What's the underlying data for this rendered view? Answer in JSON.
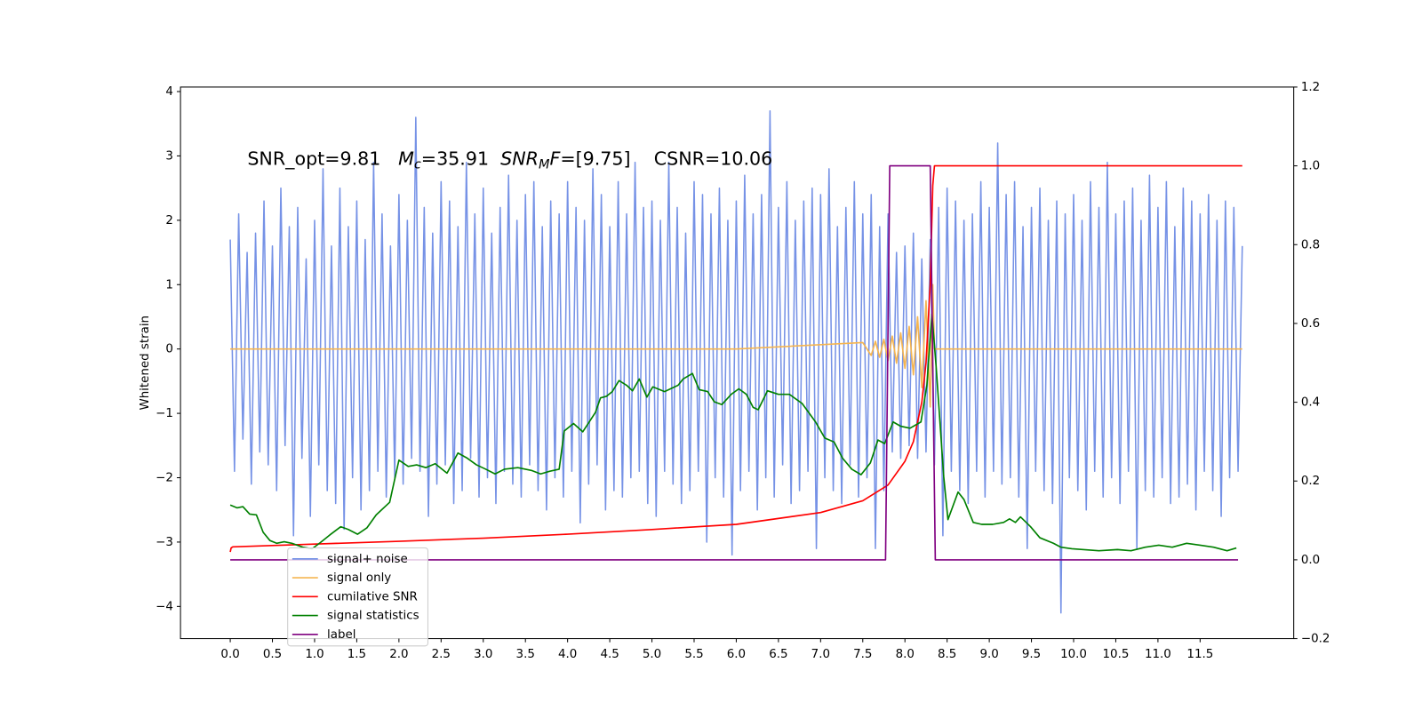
{
  "chart_data": {
    "type": "line",
    "annotation": [
      {
        "text": "SNR_opt=9.81   ",
        "style": "normal"
      },
      {
        "text": "M",
        "style": "italic"
      },
      {
        "text": "c",
        "style": "sub"
      },
      {
        "text": "=35.91  ",
        "style": "normal"
      },
      {
        "text": "SNR",
        "style": "italic"
      },
      {
        "text": "M",
        "style": "sub"
      },
      {
        "text": "F",
        "style": "italic"
      },
      {
        "text": "=[9.75]    CSNR=10.06",
        "style": "normal"
      }
    ],
    "y_label": "Whitened strain",
    "xlim": [
      -0.59,
      12.61
    ],
    "ylim": [
      -4.5,
      4.07
    ],
    "y2lim": [
      -0.2,
      1.2
    ],
    "xticks": [
      {
        "value": 0,
        "label": "0.0"
      },
      0.5,
      {
        "value": 1,
        "label": "1.0"
      },
      1.5,
      {
        "value": 2,
        "label": "2.0"
      },
      2.5,
      {
        "value": 3,
        "label": "3.0"
      },
      3.5,
      {
        "value": 4,
        "label": "4.0"
      },
      4.5,
      {
        "value": 5,
        "label": "5.0"
      },
      5.5,
      {
        "value": 6,
        "label": "6.0"
      },
      6.5,
      {
        "value": 7,
        "label": "7.0"
      },
      7.5,
      {
        "value": 8,
        "label": "8.0"
      },
      8.5,
      {
        "value": 9,
        "label": "9.0"
      },
      9.5,
      {
        "value": 10,
        "label": "10.0"
      },
      10.5,
      {
        "value": 11,
        "label": "11.0"
      },
      11.5
    ],
    "yticks": [
      {
        "value": -4,
        "label": "−4"
      },
      {
        "value": -3,
        "label": "−3"
      },
      {
        "value": -2,
        "label": "−2"
      },
      {
        "value": -1,
        "label": "−1"
      },
      0,
      1,
      2,
      3,
      4
    ],
    "y2ticks": [
      {
        "value": -0.2,
        "label": "−0.2"
      },
      {
        "value": 0,
        "label": "0.0"
      },
      0.2,
      0.4,
      0.6,
      0.8,
      {
        "value": 1,
        "label": "1.0"
      },
      1.2
    ],
    "legend": "lower left",
    "series": [
      {
        "name": "signal+ noise",
        "color": "#7692e6",
        "axis": "y",
        "x": [
          0,
          0.05,
          0.1,
          0.15,
          0.2,
          0.25,
          0.3,
          0.35,
          0.4,
          0.45,
          0.5,
          0.55,
          0.6,
          0.65,
          0.7,
          0.75,
          0.8,
          0.85,
          0.9,
          0.95,
          1,
          1.05,
          1.1,
          1.15,
          1.2,
          1.25,
          1.3,
          1.35,
          1.4,
          1.45,
          1.5,
          1.55,
          1.6,
          1.65,
          1.7,
          1.75,
          1.8,
          1.85,
          1.9,
          1.95,
          2,
          2.05,
          2.1,
          2.15,
          2.2,
          2.25,
          2.3,
          2.35,
          2.4,
          2.45,
          2.5,
          2.55,
          2.6,
          2.65,
          2.7,
          2.75,
          2.8,
          2.85,
          2.9,
          2.95,
          3,
          3.05,
          3.1,
          3.15,
          3.2,
          3.25,
          3.3,
          3.35,
          3.4,
          3.45,
          3.5,
          3.55,
          3.6,
          3.65,
          3.7,
          3.75,
          3.8,
          3.85,
          3.9,
          3.95,
          4,
          4.05,
          4.1,
          4.15,
          4.2,
          4.25,
          4.3,
          4.35,
          4.4,
          4.45,
          4.5,
          4.55,
          4.6,
          4.65,
          4.7,
          4.75,
          4.8,
          4.85,
          4.9,
          4.95,
          5,
          5.05,
          5.1,
          5.15,
          5.2,
          5.25,
          5.3,
          5.35,
          5.4,
          5.45,
          5.5,
          5.55,
          5.6,
          5.65,
          5.7,
          5.75,
          5.8,
          5.85,
          5.9,
          5.95,
          6,
          6.05,
          6.1,
          6.15,
          6.2,
          6.25,
          6.3,
          6.35,
          6.4,
          6.45,
          6.5,
          6.55,
          6.6,
          6.65,
          6.7,
          6.75,
          6.8,
          6.85,
          6.9,
          6.95,
          7,
          7.05,
          7.1,
          7.15,
          7.2,
          7.25,
          7.3,
          7.35,
          7.4,
          7.45,
          7.5,
          7.55,
          7.6,
          7.65,
          7.7,
          7.75,
          7.8,
          7.85,
          7.9,
          7.95,
          8,
          8.05,
          8.1,
          8.15,
          8.2,
          8.25,
          8.3,
          8.35,
          8.4,
          8.45,
          8.5,
          8.55,
          8.6,
          8.65,
          8.7,
          8.75,
          8.8,
          8.85,
          8.9,
          8.95,
          9,
          9.05,
          9.1,
          9.15,
          9.2,
          9.25,
          9.3,
          9.35,
          9.4,
          9.45,
          9.5,
          9.55,
          9.6,
          9.65,
          9.7,
          9.75,
          9.8,
          9.85,
          9.9,
          9.95,
          10,
          10.05,
          10.1,
          10.15,
          10.2,
          10.25,
          10.3,
          10.35,
          10.4,
          10.45,
          10.5,
          10.55,
          10.6,
          10.65,
          10.7,
          10.75,
          10.8,
          10.85,
          10.9,
          10.95,
          11,
          11.05,
          11.1,
          11.15,
          11.2,
          11.25,
          11.3,
          11.35,
          11.4,
          11.45,
          11.5,
          11.55,
          11.6,
          11.65,
          11.7,
          11.75,
          11.8,
          11.85,
          11.9,
          11.95,
          12
        ],
        "values": [
          1.7,
          -1.9,
          2.1,
          -1.4,
          1.5,
          -2.1,
          1.8,
          -1.6,
          2.3,
          -1.8,
          1.6,
          -2.2,
          2.5,
          -1.5,
          1.9,
          -2.9,
          2.2,
          -1.7,
          1.4,
          -2.6,
          2.0,
          -1.8,
          2.8,
          -2.2,
          1.6,
          -2.4,
          2.5,
          -2.8,
          1.9,
          -2.0,
          2.3,
          -2.5,
          1.7,
          -2.2,
          2.9,
          -1.9,
          2.1,
          -2.3,
          1.6,
          -2.0,
          2.4,
          -2.1,
          2.0,
          -1.7,
          3.6,
          -1.9,
          2.2,
          -2.6,
          1.8,
          -2.1,
          2.6,
          -1.8,
          2.3,
          -2.4,
          1.9,
          -2.2,
          2.9,
          -1.7,
          2.1,
          -2.3,
          2.5,
          -2.0,
          1.8,
          -2.4,
          2.2,
          -1.9,
          2.7,
          -2.1,
          2.0,
          -2.3,
          2.4,
          -1.8,
          2.6,
          -2.2,
          1.9,
          -2.5,
          2.3,
          -2.0,
          2.1,
          -2.3,
          2.6,
          -1.9,
          2.2,
          -2.7,
          2.0,
          -2.1,
          2.8,
          -1.8,
          2.4,
          -2.5,
          1.9,
          -2.2,
          2.6,
          -2.3,
          2.1,
          -2.0,
          2.9,
          -1.9,
          2.2,
          -2.4,
          2.3,
          -2.6,
          2.0,
          -1.9,
          2.9,
          -2.1,
          2.2,
          -2.4,
          1.8,
          -2.2,
          2.6,
          -1.9,
          2.4,
          -3.0,
          2.1,
          -2.0,
          2.5,
          -2.3,
          2.0,
          -3.2,
          2.3,
          -2.2,
          2.7,
          -1.9,
          2.1,
          -2.5,
          2.4,
          -2.0,
          3.7,
          -2.3,
          2.2,
          -1.8,
          2.6,
          -2.4,
          2.0,
          -2.2,
          2.3,
          -1.9,
          2.5,
          -3.1,
          2.4,
          -2.0,
          2.8,
          -2.2,
          1.9,
          -2.4,
          2.2,
          -1.8,
          2.6,
          -2.3,
          2.1,
          -2.0,
          2.4,
          -3.1,
          1.9,
          -2.2,
          2.1,
          -1.6,
          1.5,
          -1.7,
          1.6,
          -1.5,
          1.8,
          -1.7,
          1.4,
          -1.6,
          1.7,
          -1.8,
          2.2,
          -2.9,
          2.5,
          -1.9,
          2.3,
          -2.2,
          2.0,
          -2.4,
          2.1,
          -1.9,
          2.6,
          -2.3,
          2.2,
          -1.9,
          3.2,
          -2.1,
          2.4,
          -2.0,
          2.6,
          -2.3,
          1.9,
          -3.1,
          2.2,
          -1.9,
          2.5,
          -2.2,
          2.0,
          -2.4,
          2.3,
          -4.1,
          2.1,
          -2.0,
          2.4,
          -2.2,
          2.0,
          -2.5,
          2.6,
          -1.9,
          2.2,
          -2.3,
          2.9,
          -2.0,
          2.1,
          -2.4,
          2.3,
          -1.9,
          2.5,
          -3.1,
          2.0,
          -2.2,
          2.7,
          -2.3,
          2.2,
          -2.0,
          2.6,
          -2.4,
          1.9,
          -2.3,
          2.5,
          -2.1,
          2.3,
          -2.5,
          2.1,
          -1.9,
          2.4,
          -2.2,
          2.0,
          -2.6,
          2.3,
          -2.0,
          2.2,
          -1.9,
          1.6
        ]
      },
      {
        "name": "signal only",
        "color": "#f5b550",
        "axis": "y",
        "x": [
          0,
          6.0,
          7.5,
          7.6,
          7.65,
          7.7,
          7.75,
          7.8,
          7.85,
          7.9,
          7.95,
          8.0,
          8.05,
          8.1,
          8.15,
          8.2,
          8.25,
          8.3,
          8.33,
          8.35,
          12.0
        ],
        "values": [
          0,
          0,
          0.1,
          -0.1,
          0.12,
          -0.13,
          0.15,
          -0.18,
          0.2,
          -0.22,
          0.25,
          -0.3,
          0.35,
          -0.4,
          0.5,
          -0.6,
          0.75,
          -0.9,
          1.0,
          0,
          0
        ]
      },
      {
        "name": "cumilative SNR",
        "color": "#ff0000",
        "axis": "y2",
        "x": [
          0,
          0.01,
          0.03,
          1,
          2,
          3,
          4,
          5,
          6,
          7,
          7.5,
          7.8,
          8.0,
          8.1,
          8.2,
          8.25,
          8.3,
          8.33,
          8.35,
          12.0
        ],
        "values": [
          0.02,
          0.03,
          0.033,
          0.04,
          0.047,
          0.055,
          0.065,
          0.077,
          0.09,
          0.12,
          0.15,
          0.19,
          0.25,
          0.3,
          0.4,
          0.5,
          0.7,
          0.95,
          1.0,
          1.0
        ]
      },
      {
        "name": "signal statistics",
        "color": "#008000",
        "axis": "y2",
        "x": [
          0,
          0.08,
          0.15,
          0.23,
          0.31,
          0.39,
          0.47,
          0.55,
          0.64,
          0.73,
          0.86,
          0.97,
          1.07,
          1.18,
          1.31,
          1.4,
          1.51,
          1.62,
          1.73,
          1.89,
          2.0,
          2.11,
          2.21,
          2.32,
          2.43,
          2.57,
          2.7,
          2.81,
          2.92,
          3.03,
          3.14,
          3.25,
          3.41,
          3.57,
          3.68,
          3.79,
          3.9,
          3.96,
          4.07,
          4.18,
          4.33,
          4.39,
          4.46,
          4.53,
          4.61,
          4.7,
          4.77,
          4.85,
          4.94,
          5.01,
          5.15,
          5.31,
          5.37,
          5.48,
          5.56,
          5.66,
          5.74,
          5.83,
          5.94,
          6.03,
          6.12,
          6.2,
          6.26,
          6.37,
          6.5,
          6.63,
          6.78,
          6.94,
          7.05,
          7.16,
          7.26,
          7.37,
          7.48,
          7.59,
          7.68,
          7.76,
          7.86,
          7.95,
          8.06,
          8.19,
          8.26,
          8.32,
          8.37,
          8.46,
          8.51,
          8.63,
          8.7,
          8.81,
          8.91,
          9.04,
          9.17,
          9.24,
          9.31,
          9.37,
          9.49,
          9.6,
          9.76,
          9.85,
          9.98,
          10.3,
          10.52,
          10.68,
          10.85,
          11.01,
          11.17,
          11.34,
          11.5,
          11.66,
          11.82,
          11.93
        ],
        "values": [
          0.139,
          0.132,
          0.135,
          0.116,
          0.114,
          0.07,
          0.049,
          0.042,
          0.046,
          0.042,
          0.032,
          0.028,
          0.044,
          0.063,
          0.084,
          0.077,
          0.065,
          0.081,
          0.114,
          0.146,
          0.253,
          0.237,
          0.241,
          0.234,
          0.244,
          0.22,
          0.271,
          0.258,
          0.241,
          0.23,
          0.218,
          0.23,
          0.234,
          0.227,
          0.218,
          0.225,
          0.23,
          0.327,
          0.346,
          0.325,
          0.374,
          0.411,
          0.415,
          0.427,
          0.455,
          0.443,
          0.429,
          0.459,
          0.413,
          0.439,
          0.427,
          0.443,
          0.459,
          0.473,
          0.432,
          0.427,
          0.401,
          0.394,
          0.42,
          0.434,
          0.42,
          0.387,
          0.381,
          0.429,
          0.42,
          0.42,
          0.397,
          0.35,
          0.309,
          0.299,
          0.258,
          0.23,
          0.216,
          0.246,
          0.304,
          0.295,
          0.35,
          0.339,
          0.334,
          0.35,
          0.443,
          0.624,
          0.49,
          0.211,
          0.102,
          0.172,
          0.153,
          0.095,
          0.09,
          0.09,
          0.095,
          0.104,
          0.095,
          0.109,
          0.084,
          0.056,
          0.042,
          0.032,
          0.028,
          0.023,
          0.026,
          0.023,
          0.032,
          0.037,
          0.032,
          0.042,
          0.037,
          0.032,
          0.023,
          0.03
        ]
      },
      {
        "name": "label",
        "color": "#800080",
        "axis": "y2",
        "x": [
          0,
          7.77,
          7.82,
          8.3,
          8.36,
          11.95
        ],
        "values": [
          0,
          0,
          1,
          1,
          0,
          0
        ]
      }
    ]
  }
}
